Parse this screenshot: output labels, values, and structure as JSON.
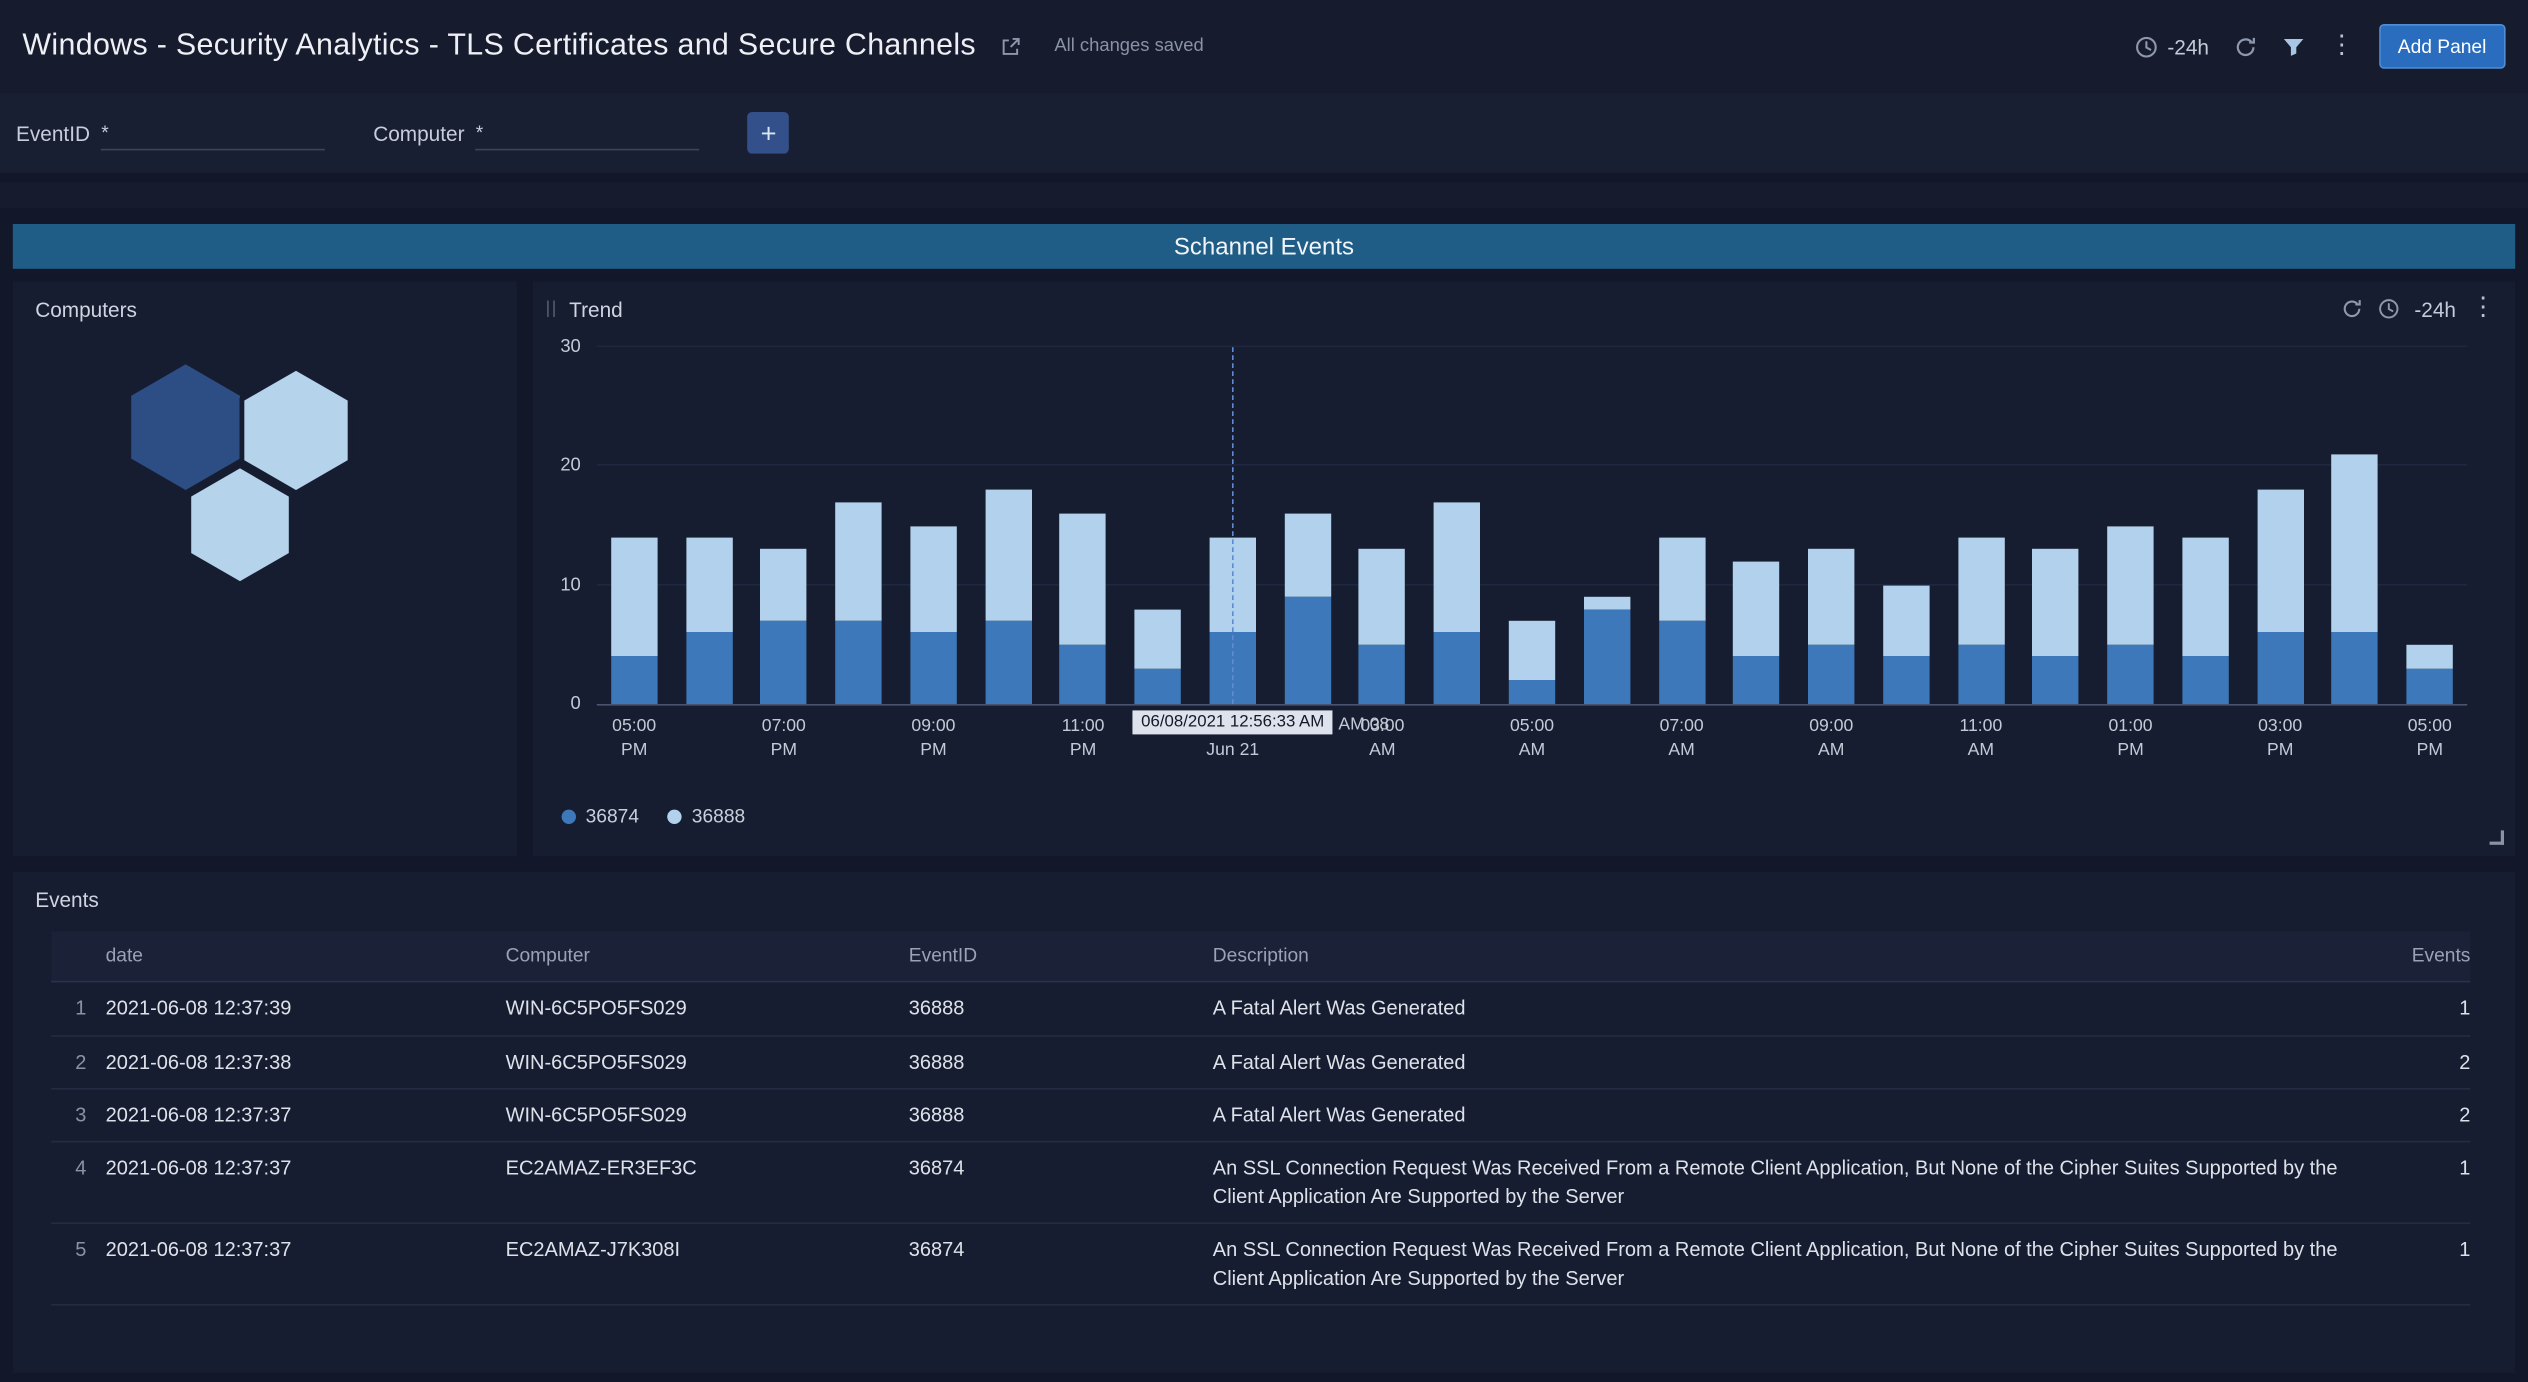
{
  "header": {
    "title": "Windows - Security Analytics - TLS Certificates and Secure Channels",
    "status": "All changes saved",
    "time_range": "-24h",
    "add_panel_label": "Add Panel"
  },
  "filters": {
    "fields": [
      {
        "label": "EventID",
        "required": "*",
        "value": ""
      },
      {
        "label": "Computer",
        "required": "*",
        "value": ""
      }
    ],
    "add_button_label": "+"
  },
  "banner": {
    "title": "Schannel Events"
  },
  "computers_panel": {
    "title": "Computers",
    "hexagons": [
      {
        "color": "#2d4e84"
      },
      {
        "color": "#b6d3ec"
      },
      {
        "color": "#b6d3ec"
      }
    ]
  },
  "trend_panel": {
    "title": "Trend",
    "time_range": "-24h",
    "chart_data": {
      "type": "bar",
      "stacked": true,
      "title": "Trend",
      "ylim": [
        0,
        30
      ],
      "yticks": [
        0,
        10,
        20,
        30
      ],
      "grid": true,
      "legend_position": "bottom-left",
      "x_labels": [
        "05:00\nPM",
        "07:00\nPM",
        "09:00\nPM",
        "11:00\nPM",
        null,
        "03:00\nAM",
        "05:00\nAM",
        "07:00\nAM",
        "09:00\nAM",
        "11:00\nAM",
        "01:00\nPM",
        "03:00\nPM",
        "05:00\nPM"
      ],
      "cursor": {
        "index": 8,
        "tooltip": "06/08/2021 12:56:33 AM",
        "label_right": "AM 08",
        "label_below": "Jun 21"
      },
      "series": [
        {
          "name": "36874",
          "color": "#3d78ba",
          "values": [
            4,
            6,
            7,
            7,
            6,
            7,
            5,
            3,
            6,
            9,
            5,
            6,
            2,
            8,
            7,
            4,
            5,
            4,
            5,
            4,
            5,
            4,
            6,
            6,
            3
          ]
        },
        {
          "name": "36888",
          "color": "#b2d1ec",
          "values": [
            10,
            8,
            6,
            10,
            9,
            11,
            11,
            5,
            8,
            7,
            8,
            11,
            5,
            1,
            7,
            8,
            8,
            6,
            9,
            9,
            10,
            10,
            12,
            15,
            2
          ]
        }
      ]
    }
  },
  "events_panel": {
    "title": "Events",
    "columns": [
      "date",
      "Computer",
      "EventID",
      "Description",
      "Events"
    ],
    "rows": [
      {
        "num": 1,
        "date": "2021-06-08 12:37:39",
        "computer": "WIN-6C5PO5FS029",
        "event_id": "36888",
        "description": "A Fatal Alert Was Generated",
        "events": 1
      },
      {
        "num": 2,
        "date": "2021-06-08 12:37:38",
        "computer": "WIN-6C5PO5FS029",
        "event_id": "36888",
        "description": "A Fatal Alert Was Generated",
        "events": 2
      },
      {
        "num": 3,
        "date": "2021-06-08 12:37:37",
        "computer": "WIN-6C5PO5FS029",
        "event_id": "36888",
        "description": "A Fatal Alert Was Generated",
        "events": 2
      },
      {
        "num": 4,
        "date": "2021-06-08 12:37:37",
        "computer": "EC2AMAZ-ER3EF3C",
        "event_id": "36874",
        "description": "An SSL Connection Request Was Received From a Remote Client Application, But None of the Cipher Suites Supported by the Client Application Are Supported by the Server",
        "events": 1
      },
      {
        "num": 5,
        "date": "2021-06-08 12:37:37",
        "computer": "EC2AMAZ-J7K308I",
        "event_id": "36874",
        "description": "An SSL Connection Request Was Received From a Remote Client Application, But None of the Cipher Suites Supported by the Client Application Are Supported by the Server",
        "events": 1
      }
    ]
  }
}
